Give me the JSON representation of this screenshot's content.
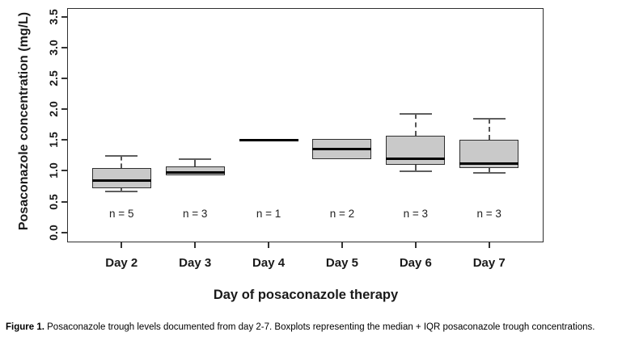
{
  "chart_data": {
    "type": "boxplot",
    "title": "",
    "xlabel": "Day of posaconazole therapy",
    "ylabel": "Posaconazole concentration (mg/L)",
    "ylim": [
      -0.16,
      3.64
    ],
    "xlim": [
      0.26,
      6.74
    ],
    "grid": false,
    "yticks": [
      0.0,
      0.5,
      1.0,
      1.5,
      2.0,
      2.5,
      3.0,
      3.5
    ],
    "ytick_labels": [
      "0.0",
      "0.5",
      "1.0",
      "1.5",
      "2.0",
      "2.5",
      "3.0",
      "3.5"
    ],
    "categories": [
      "Day 2",
      "Day 3",
      "Day 4",
      "Day 5",
      "Day 6",
      "Day 7"
    ],
    "n_labels": [
      "n = 5",
      "n = 3",
      "n = 1",
      "n = 2",
      "n = 3",
      "n = 3"
    ],
    "n_label_y": 0.3,
    "boxes": [
      {
        "label": "Day 2",
        "n": 5,
        "whisker_low": 0.67,
        "q1": 0.72,
        "median": 0.84,
        "q3": 1.04,
        "whisker_high": 1.24
      },
      {
        "label": "Day 3",
        "n": 3,
        "whisker_low": null,
        "q1": 0.93,
        "median": 0.97,
        "q3": 1.07,
        "whisker_high": 1.19
      },
      {
        "label": "Day 4",
        "n": 1,
        "whisker_low": null,
        "q1": 1.5,
        "median": 1.5,
        "q3": 1.5,
        "whisker_high": null
      },
      {
        "label": "Day 5",
        "n": 2,
        "whisker_low": null,
        "q1": 1.19,
        "median": 1.36,
        "q3": 1.52,
        "whisker_high": null
      },
      {
        "label": "Day 6",
        "n": 3,
        "whisker_low": 0.99,
        "q1": 1.1,
        "median": 1.2,
        "q3": 1.57,
        "whisker_high": 1.92
      },
      {
        "label": "Day 7",
        "n": 3,
        "whisker_low": 0.97,
        "q1": 1.04,
        "median": 1.12,
        "q3": 1.5,
        "whisker_high": 1.85
      }
    ],
    "colors": {
      "box_fill": "#c9c9c9",
      "box_border": "#2f2f2f",
      "median": "#000000",
      "whisker": "#555555",
      "axis": "#2f2f2f"
    }
  },
  "caption": {
    "bold": "Figure 1.",
    "text": " Posaconazole trough levels documented from day 2-7. Boxplots representing the median + IQR posaconazole trough concentrations."
  }
}
